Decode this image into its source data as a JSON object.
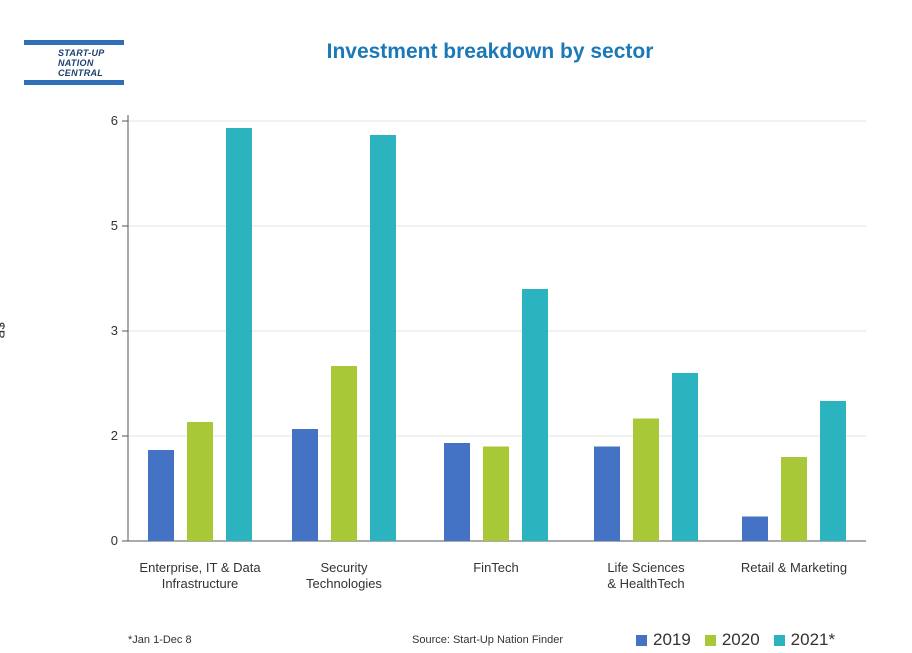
{
  "logo": {
    "lines": [
      "START-UP",
      "NATION",
      "CENTRAL"
    ]
  },
  "footnote": "*Jan 1-Dec 8",
  "source": "Source: Start-Up Nation Finder",
  "chart_data": {
    "type": "bar",
    "title": "Investment breakdown by sector",
    "ylabel": "$B",
    "xlabel": "",
    "y_tick_labels": [
      "0",
      "2",
      "3",
      "5",
      "6"
    ],
    "grid": true,
    "legend_position": "bottom-right",
    "categories": [
      [
        "Enterprise, IT & Data",
        "Infrastructure"
      ],
      [
        "Security",
        "Technologies"
      ],
      [
        "FinTech"
      ],
      [
        "Life Sciences",
        "& HealthTech"
      ],
      [
        "Retail & Marketing"
      ]
    ],
    "series": [
      {
        "name": "2019",
        "color": "#4472c4",
        "values": [
          1.3,
          1.6,
          1.4,
          1.35,
          0.35
        ]
      },
      {
        "name": "2020",
        "color": "#a9c837",
        "values": [
          1.7,
          2.5,
          1.35,
          1.75,
          1.2
        ]
      },
      {
        "name": "2021*",
        "color": "#2cb3c0",
        "values": [
          5.9,
          5.8,
          3.6,
          2.4,
          2.0
        ]
      }
    ]
  }
}
